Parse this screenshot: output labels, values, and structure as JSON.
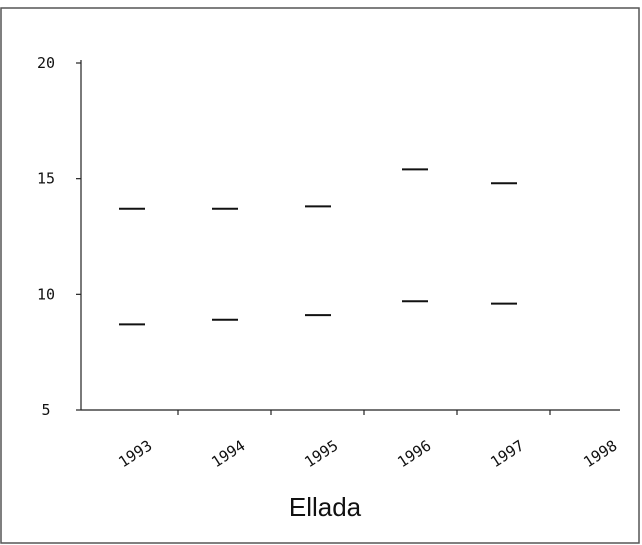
{
  "chart_data": {
    "type": "scatter",
    "title": "Ellada",
    "xlabel": "",
    "ylabel": "",
    "categories": [
      "1993",
      "1994",
      "1995",
      "1996",
      "1997",
      "1998"
    ],
    "y_ticks": [
      "20",
      "15",
      "10",
      "5"
    ],
    "ylim": [
      5,
      20
    ],
    "marker": "horizontal-dash",
    "grid": false,
    "series": [
      {
        "values": [
          13.7,
          13.7,
          13.8,
          15.4,
          14.8,
          null
        ]
      },
      {
        "values": [
          8.7,
          8.9,
          9.1,
          9.7,
          9.6,
          null
        ]
      }
    ],
    "colors": {
      "marks": "#111111",
      "axes": "#222222",
      "frame": "#555555"
    }
  }
}
